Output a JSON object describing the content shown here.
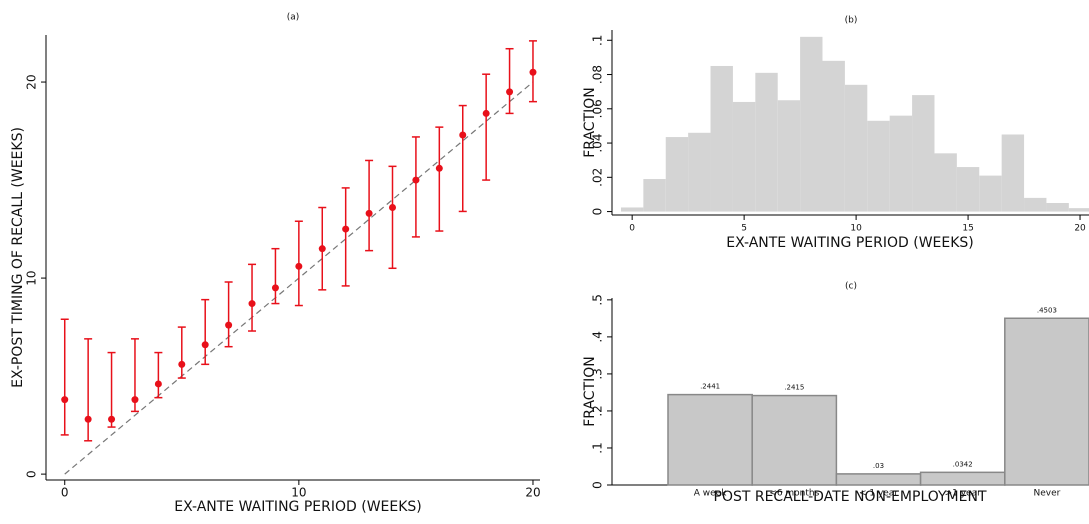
{
  "chart_data": [
    {
      "type": "scatter",
      "title": "(a)",
      "x_label": "EX-ANTE WAITING PERIOD (WEEKS)",
      "y_label": "EX-POST TIMING OF RECALL (WEEKS)",
      "x": [
        0,
        1,
        2,
        3,
        4,
        5,
        6,
        7,
        8,
        9,
        10,
        11,
        12,
        13,
        14,
        15,
        16,
        17,
        18,
        19,
        20
      ],
      "values": [
        3.8,
        2.8,
        2.8,
        3.8,
        4.6,
        5.6,
        6.6,
        7.6,
        8.7,
        9.5,
        10.6,
        11.5,
        12.5,
        13.3,
        13.6,
        15.0,
        15.6,
        17.3,
        18.4,
        19.5,
        20.5
      ],
      "lower": [
        2.0,
        1.7,
        2.4,
        3.2,
        3.9,
        4.9,
        5.6,
        6.5,
        7.3,
        8.7,
        8.6,
        9.4,
        9.6,
        11.4,
        10.5,
        12.1,
        12.4,
        13.4,
        15.0,
        18.4,
        19.0
      ],
      "upper": [
        7.9,
        6.9,
        6.2,
        6.9,
        6.2,
        7.5,
        8.9,
        9.8,
        10.7,
        11.5,
        12.9,
        13.6,
        14.6,
        16.0,
        15.7,
        17.2,
        17.7,
        18.8,
        20.4,
        21.7,
        22.1
      ],
      "color": "#e8101a",
      "xlim": [
        -0.8,
        20.3
      ],
      "ylim": [
        -0.3,
        22.4
      ],
      "xticks": [
        0,
        10,
        20
      ],
      "yticks": [
        0,
        10,
        20
      ],
      "diagonal": true
    },
    {
      "type": "histogram",
      "title": "(b)",
      "x_label": "EX-ANTE WAITING PERIOD (WEEKS)",
      "y_label": "FRACTION",
      "bins": [
        -0.5,
        0.5,
        1.5,
        2.5,
        3.5,
        4.5,
        5.5,
        6.5,
        7.5,
        8.5,
        9.5,
        10.5,
        11.5,
        12.5,
        13.5,
        14.5,
        15.5,
        16.5,
        17.5,
        18.5,
        19.5,
        20.5
      ],
      "values": [
        0.0024,
        0.019,
        0.0435,
        0.046,
        0.085,
        0.064,
        0.081,
        0.065,
        0.102,
        0.088,
        0.074,
        0.053,
        0.056,
        0.068,
        0.034,
        0.026,
        0.021,
        0.045,
        0.008,
        0.005,
        0.002
      ],
      "color": "#d4d4d4",
      "xlim": [
        -0.9,
        20.4
      ],
      "ylim": [
        -0.002,
        0.106
      ],
      "xticks": [
        0,
        5,
        10,
        15,
        20
      ],
      "yticks": [
        0,
        {
          "value": 0.02,
          "label": ".02"
        },
        {
          "value": 0.04,
          "label": ".04"
        },
        {
          "value": 0.06,
          "label": ".06"
        },
        {
          "value": 0.08,
          "label": ".08"
        },
        {
          "value": 0.1,
          "label": ".1"
        }
      ]
    },
    {
      "type": "bar",
      "title": "(c)",
      "x_label": "POST RECALL-DATE NON-EMPLOYMENT",
      "y_label": "FRACTION",
      "categories": [
        "A week",
        "<6 months",
        "< 1 year",
        ">1 year",
        "Never"
      ],
      "values": [
        0.2441,
        0.2415,
        0.03,
        0.0342,
        0.4503
      ],
      "value_labels": [
        ".2441",
        ".2415",
        ".03",
        ".0342",
        ".4503"
      ],
      "color": "#c8c8c8",
      "ylim": [
        0,
        0.505
      ],
      "yticks": [
        0,
        {
          "value": 0.1,
          "label": ".1"
        },
        {
          "value": 0.2,
          "label": ".2"
        },
        {
          "value": 0.3,
          "label": ".3"
        },
        {
          "value": 0.4,
          "label": ".4"
        },
        {
          "value": 0.5,
          "label": ".5"
        }
      ]
    }
  ]
}
